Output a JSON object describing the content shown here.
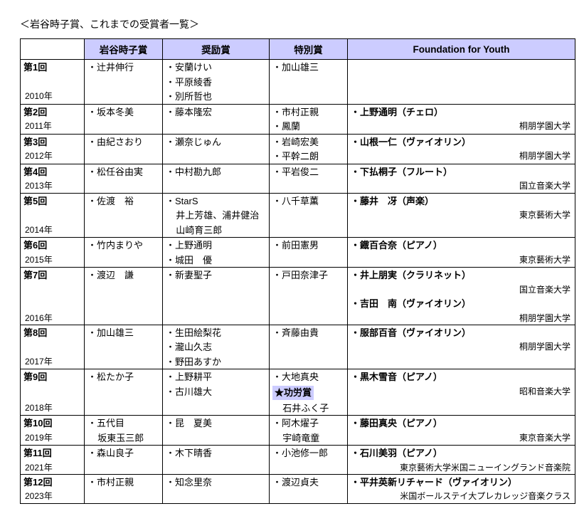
{
  "title": "＜岩谷時子賞、これまでの受賞者一覧＞",
  "headers": {
    "tokiko": "岩谷時子賞",
    "encouragement": "奨励賞",
    "special": "特別賞",
    "youth": "Foundation for Youth"
  },
  "editions": [
    {
      "num": "第1回",
      "year": "2010年",
      "tokiko": [
        "辻井伸行"
      ],
      "encouragement": [
        "安蘭けい",
        "平原綾香",
        "別所哲也"
      ],
      "special": [
        "加山雄三"
      ],
      "youth": []
    },
    {
      "num": "第2回",
      "year": "2011年",
      "tokiko": [
        "坂本冬美"
      ],
      "encouragement": [
        "藤本隆宏"
      ],
      "special": [
        "市村正親",
        "鳳蘭"
      ],
      "youth": [
        {
          "name": "上野通明",
          "inst": "チェロ",
          "school": "桐朋学園大学"
        }
      ]
    },
    {
      "num": "第3回",
      "year": "2012年",
      "tokiko": [
        "由紀さおり"
      ],
      "encouragement": [
        "瀬奈じゅん"
      ],
      "special": [
        "岩崎宏美",
        "平幹二朗"
      ],
      "youth": [
        {
          "name": "山根一仁",
          "inst": "ヴァイオリン",
          "school": "桐朋学園大学"
        }
      ]
    },
    {
      "num": "第4回",
      "year": "2013年",
      "tokiko": [
        "松任谷由実"
      ],
      "encouragement": [
        "中村勘九郎"
      ],
      "special": [
        "平岩俊二"
      ],
      "youth": [
        {
          "name": "下払桐子",
          "inst": "フルート",
          "school": "国立音楽大学"
        }
      ]
    },
    {
      "num": "第5回",
      "year": "2014年",
      "tokiko": [
        "佐渡　裕"
      ],
      "encouragement": [
        "StarS"
      ],
      "encouragement_sub": [
        "井上芳雄、浦井健治",
        "山崎育三郎"
      ],
      "special": [
        "八千草薫"
      ],
      "youth": [
        {
          "name": "藤井　冴",
          "inst": "声楽",
          "school": "東京藝術大学"
        }
      ]
    },
    {
      "num": "第6回",
      "year": "2015年",
      "tokiko": [
        "竹内まりや"
      ],
      "encouragement": [
        "上野通明",
        "城田　優"
      ],
      "special": [
        "前田憲男"
      ],
      "youth": [
        {
          "name": "鐡百合奈",
          "inst": "ピアノ",
          "school": "東京藝術大学"
        }
      ]
    },
    {
      "num": "第7回",
      "year": "2016年",
      "tokiko": [
        "渡辺　謙"
      ],
      "encouragement": [
        "新妻聖子"
      ],
      "special": [
        "戸田奈津子"
      ],
      "youth": [
        {
          "name": "井上朋実",
          "inst": "クラリネット",
          "school": "国立音楽大学"
        },
        {
          "name": "吉田　南",
          "inst": "ヴァイオリン",
          "school": "桐朋学園大学"
        }
      ]
    },
    {
      "num": "第8回",
      "year": "2017年",
      "tokiko": [
        "加山雄三"
      ],
      "encouragement": [
        "生田絵梨花",
        "瀧山久志",
        "野田あすか"
      ],
      "special": [
        "斉藤由貴"
      ],
      "youth": [
        {
          "name": "服部百音",
          "inst": "ヴァイオリン",
          "school": "桐朋学園大学"
        }
      ]
    },
    {
      "num": "第9回",
      "year": "2018年",
      "tokiko": [
        "松たか子"
      ],
      "encouragement": [
        "上野耕平",
        "古川雄大"
      ],
      "special": [
        "大地真央"
      ],
      "special_badge": "★功労賞",
      "special_badge_sub": "石井ふく子",
      "youth": [
        {
          "name": "黒木雪音",
          "inst": "ピアノ",
          "school": "昭和音楽大学"
        }
      ]
    },
    {
      "num": "第10回",
      "year": "2019年",
      "tokiko": [
        "五代目"
      ],
      "tokiko_sub": [
        "坂東玉三郎"
      ],
      "encouragement": [
        "昆　夏美"
      ],
      "special": [
        "阿木燿子"
      ],
      "special_sub": [
        "宇崎竜童"
      ],
      "youth": [
        {
          "name": "藤田真央",
          "inst": "ピアノ",
          "school": "東京音楽大学"
        }
      ]
    },
    {
      "num": "第11回",
      "year": "2021年",
      "tokiko": [
        "森山良子"
      ],
      "encouragement": [
        "木下晴香"
      ],
      "special": [
        "小池修一郎"
      ],
      "youth": [
        {
          "name": "石川美羽",
          "inst": "ピアノ",
          "school": "東京藝術大学米国ニューイングランド音楽院"
        }
      ]
    },
    {
      "num": "第12回",
      "year": "2023年",
      "tokiko": [
        "市村正親"
      ],
      "encouragement": [
        "知念里奈"
      ],
      "special": [
        "渡辺貞夫"
      ],
      "youth": [
        {
          "name": "平井英新リチャード",
          "inst": "ヴァイオリン",
          "school": "米国ボールステイ大プレカレッジ音楽クラス"
        }
      ]
    }
  ]
}
